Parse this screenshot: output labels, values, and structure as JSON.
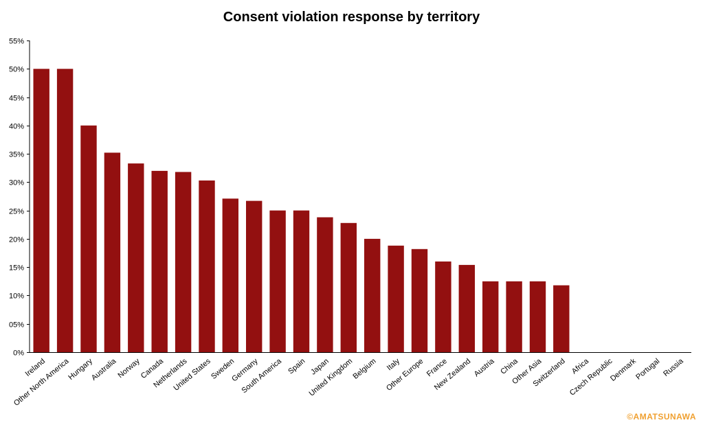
{
  "chart_data": {
    "type": "bar",
    "title": "Consent violation response by territory",
    "xlabel": "",
    "ylabel": "",
    "ylim": [
      0,
      55
    ],
    "yticks": [
      0,
      5,
      10,
      15,
      20,
      25,
      30,
      35,
      40,
      45,
      50,
      55
    ],
    "ytick_labels": [
      "0%",
      "05%",
      "10%",
      "15%",
      "20%",
      "25%",
      "30%",
      "35%",
      "40%",
      "45%",
      "50%",
      "55%"
    ],
    "grid": false,
    "legend": "none",
    "bar_color": "#931010",
    "categories": [
      "Ireland",
      "Other North America",
      "Hungary",
      "Australia",
      "Norway",
      "Canada",
      "Netherlands",
      "United States",
      "Sweden",
      "Germany",
      "South America",
      "Spain",
      "Japan",
      "United Kingdom",
      "Belgium",
      "Italy",
      "Other Europe",
      "France",
      "New Zealand",
      "Austria",
      "China",
      "Other Asia",
      "Switzerland",
      "Africa",
      "Czech Republic",
      "Denmark",
      "Portugal",
      "Russia"
    ],
    "values": [
      50,
      50,
      40,
      35.2,
      33.3,
      32,
      31.8,
      30.3,
      27.1,
      26.7,
      25,
      25,
      23.8,
      22.8,
      20,
      18.8,
      18.2,
      16,
      15.4,
      12.5,
      12.5,
      12.5,
      11.8,
      0,
      0,
      0,
      0,
      0
    ]
  },
  "watermark": "©AMATSUNAWA"
}
